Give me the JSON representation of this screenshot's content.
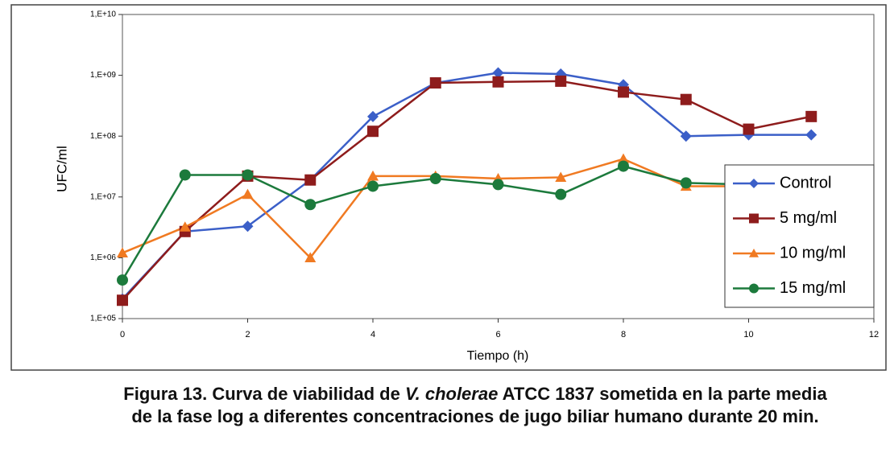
{
  "chart_data": {
    "type": "line",
    "y_label": "UFC/ml",
    "x_label": "Tiempo (h)",
    "x": [
      0,
      1,
      2,
      3,
      4,
      5,
      6,
      7,
      8,
      9,
      10,
      11
    ],
    "series": [
      {
        "name": "Control",
        "color": "#3b5fc8",
        "marker": "diamond",
        "values": [
          210000,
          2700000,
          3300000,
          19000000,
          210000000,
          750000000,
          1100000000,
          1050000000,
          700000000,
          100000000,
          105000000,
          105000000
        ]
      },
      {
        "name": "5 mg/ml",
        "color": "#8e1c1c",
        "marker": "square",
        "values": [
          200000,
          2700000,
          22000000,
          19000000,
          120000000,
          750000000,
          780000000,
          800000000,
          530000000,
          400000000,
          130000000,
          210000000
        ]
      },
      {
        "name": "10 mg/ml",
        "color": "#f07a22",
        "marker": "triangle",
        "values": [
          1200000,
          3200000,
          11000000,
          1000000,
          22000000,
          22000000,
          20000000,
          21000000,
          42000000,
          15000000,
          15000000,
          15000000
        ]
      },
      {
        "name": "15 mg/ml",
        "color": "#1c7a3c",
        "marker": "circle",
        "values": [
          430000,
          23000000,
          23000000,
          7500000,
          15000000,
          20000000,
          16000000,
          11000000,
          32000000,
          17000000,
          16000000,
          16000000
        ]
      }
    ],
    "xlim": [
      0,
      12
    ],
    "xticks": [
      0,
      2,
      4,
      6,
      8,
      10,
      12
    ],
    "ylim": [
      100000,
      10000000000
    ],
    "log_y": true,
    "yticks": [
      {
        "value": 100000,
        "label": "1,E+05"
      },
      {
        "value": 1000000,
        "label": "1,E+06"
      },
      {
        "value": 10000000,
        "label": "1,E+07"
      },
      {
        "value": 100000000,
        "label": "1,E+08"
      },
      {
        "value": 1000000000,
        "label": "1,E+09"
      },
      {
        "value": 10000000000,
        "label": "1,E+10"
      }
    ],
    "legend_position": "right",
    "caption": {
      "before": "Figura 13. Curva de viabilidad de ",
      "italic": "V. cholerae",
      "after": "  ATCC 1837 sometida en la parte media de la fase log a diferentes concentraciones de jugo biliar humano durante 20 min."
    }
  }
}
